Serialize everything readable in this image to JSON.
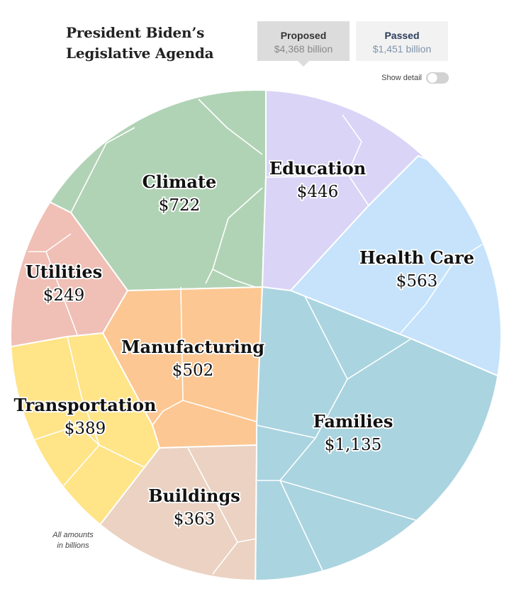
{
  "header": {
    "title_line1": "President Biden’s",
    "title_line2": "Legislative Agenda"
  },
  "tabs": [
    {
      "label": "Proposed",
      "amount": "$4,368 billion",
      "selected": true
    },
    {
      "label": "Passed",
      "amount": "$1,451 billion",
      "selected": false
    }
  ],
  "toggle": {
    "label": "Show detail",
    "on": false
  },
  "footnote": {
    "line1": "All amounts",
    "line2": "in billions"
  },
  "chart_data": {
    "type": "voronoi-treemap",
    "unit": "billions of dollars",
    "total_label": "$4,368 billion",
    "categories": [
      {
        "key": "climate",
        "name": "Climate",
        "value": 722,
        "label": "$722",
        "color": "#b1d3b5"
      },
      {
        "key": "education",
        "name": "Education",
        "value": 446,
        "label": "$446",
        "color": "#dad4f7"
      },
      {
        "key": "health",
        "name": "Health Care",
        "value": 563,
        "label": "$563",
        "color": "#c6e3fb"
      },
      {
        "key": "utilities",
        "name": "Utilities",
        "value": 249,
        "label": "$249",
        "color": "#f0bfb5"
      },
      {
        "key": "manufacturing",
        "name": "Manufacturing",
        "value": 502,
        "label": "$502",
        "color": "#fcc793"
      },
      {
        "key": "transportation",
        "name": "Transportation",
        "value": 389,
        "label": "$389",
        "color": "#ffe488"
      },
      {
        "key": "families",
        "name": "Families",
        "value": 1135,
        "label": "$1,135",
        "color": "#aad4e0"
      },
      {
        "key": "buildings",
        "name": "Buildings",
        "value": 363,
        "label": "$363",
        "color": "#ebd2c2"
      }
    ]
  }
}
